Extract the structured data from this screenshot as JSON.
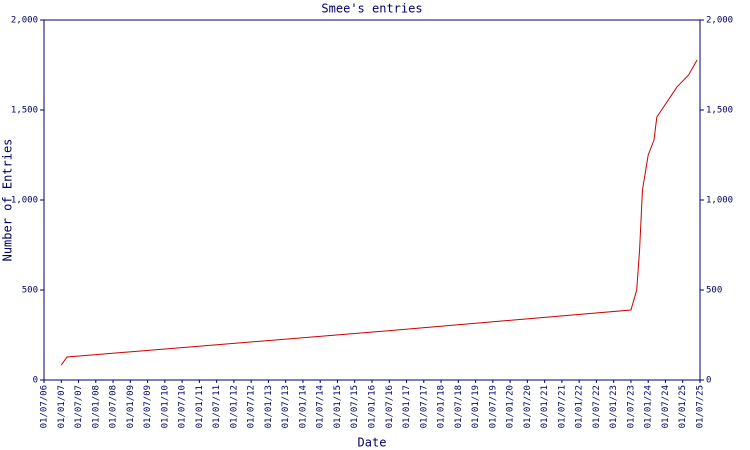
{
  "chart_data": {
    "type": "line",
    "title": "Smee's entries",
    "xlabel": "Date",
    "ylabel": "Number of Entries",
    "x": [
      "01/01/07",
      "01/03/07",
      "01/07/15",
      "01/07/23",
      "01/09/23",
      "01/10/23",
      "01/11/23",
      "01/01/24",
      "01/03/24",
      "01/04/24",
      "01/08/24",
      "01/11/24",
      "01/03/25",
      "01/06/25"
    ],
    "series": [
      {
        "name": "Entries",
        "color": "#cc0000",
        "values": [
          83,
          128,
          258,
          389,
          500,
          722,
          1056,
          1250,
          1333,
          1461,
          1556,
          1628,
          1694,
          1778
        ]
      }
    ],
    "xlim": [
      "01/07/06",
      "01/07/25"
    ],
    "xticks": [
      "01/07/06",
      "01/01/07",
      "01/07/07",
      "01/01/08",
      "01/07/08",
      "01/01/09",
      "01/07/09",
      "01/01/10",
      "01/07/10",
      "01/01/11",
      "01/07/11",
      "01/01/12",
      "01/07/12",
      "01/01/13",
      "01/07/13",
      "01/01/14",
      "01/07/14",
      "01/01/15",
      "01/07/15",
      "01/01/16",
      "01/07/16",
      "01/01/17",
      "01/07/17",
      "01/01/18",
      "01/07/18",
      "01/01/19",
      "01/07/19",
      "01/01/20",
      "01/07/20",
      "01/01/21",
      "01/07/21",
      "01/01/22",
      "01/07/22",
      "01/01/23",
      "01/07/23",
      "01/01/24",
      "01/07/24",
      "01/01/25",
      "01/07/25"
    ],
    "ylim": [
      0,
      2000
    ],
    "yticks": [
      0,
      500,
      {
        "value": 1000,
        "label": "1,000"
      },
      {
        "value": 1500,
        "label": "1,500"
      },
      {
        "value": 2000,
        "label": "2,000"
      }
    ]
  }
}
